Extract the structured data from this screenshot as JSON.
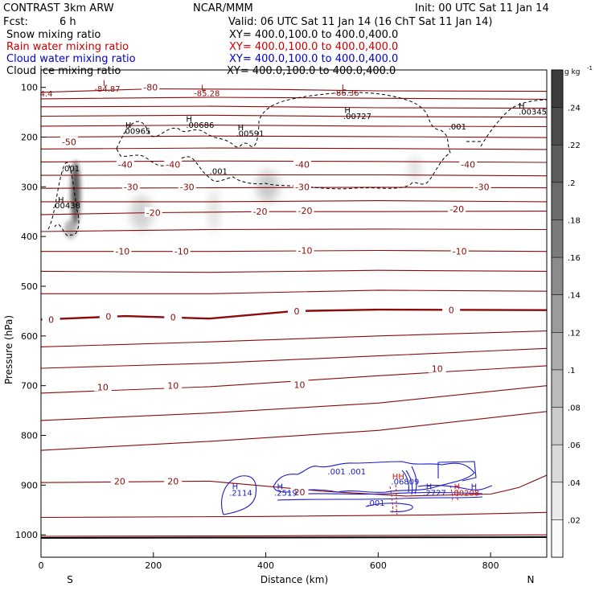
{
  "header": {
    "model": "CONTRAST  3km ARW",
    "center": "NCAR/MMM",
    "init": "Init: 00 UTC Sat 11 Jan 14",
    "fcst_label": "Fcst:",
    "fcst_value": "6 h",
    "valid": "Valid: 06 UTC Sat 11 Jan 14 (16 ChT Sat 11 Jan 14)"
  },
  "legend": [
    {
      "field": "Snow mixing ratio",
      "xy": "XY= 400.0,100.0 to 400.0,400.0",
      "color": "#000000"
    },
    {
      "field": "Rain water mixing ratio",
      "xy": "XY= 400.0,100.0 to 400.0,400.0",
      "color": "#cc0000"
    },
    {
      "field": "Cloud water mixing ratio",
      "xy": "XY= 400.0,100.0 to 400.0,400.0",
      "color": "#0000cc"
    },
    {
      "field": "Cloud ice mixing ratio",
      "xy": "XY= 400.0,100.0 to 400.0,400.0",
      "color": "#000000"
    }
  ],
  "colors": {
    "temperature": "#8b0a0a",
    "cloud_water": "#1a1acc",
    "rain": "#cc1111",
    "ice": "#000000"
  },
  "chart_data": {
    "type": "cross-section",
    "xlabel": "Distance (km)",
    "ylabel": "Pressure (hPa)",
    "xlim": [
      0,
      900
    ],
    "ylim": [
      1045,
      65
    ],
    "x_ticks": [
      "0",
      "200",
      "400",
      "600",
      "800"
    ],
    "y_ticks": [
      "100",
      "200",
      "300",
      "400",
      "500",
      "600",
      "700",
      "800",
      "900",
      "1000"
    ],
    "x_endpoints": [
      "S",
      "N"
    ],
    "colorbar": {
      "unit": "g kg",
      "unit_exp": "-1",
      "ticks": [
        ".24",
        ".22",
        ".2",
        ".18",
        ".16",
        ".14",
        ".12",
        ".1",
        ".08",
        ".06",
        ".04",
        ".02"
      ]
    },
    "temperature_labels": [
      {
        "text": "-80",
        "x": 195,
        "p": 100
      },
      {
        "text": "-50",
        "x": 50,
        "p": 210
      },
      {
        "text": "-40",
        "x": 150,
        "p": 255
      },
      {
        "text": "-40",
        "x": 235,
        "p": 255
      },
      {
        "text": "-40",
        "x": 465,
        "p": 255
      },
      {
        "text": "-40",
        "x": 760,
        "p": 255
      },
      {
        "text": "-30",
        "x": 160,
        "p": 300
      },
      {
        "text": "-30",
        "x": 260,
        "p": 300
      },
      {
        "text": "-30",
        "x": 465,
        "p": 300
      },
      {
        "text": "-30",
        "x": 785,
        "p": 300
      },
      {
        "text": "-20",
        "x": 200,
        "p": 352
      },
      {
        "text": "-20",
        "x": 390,
        "p": 350
      },
      {
        "text": "-20",
        "x": 470,
        "p": 348
      },
      {
        "text": "-20",
        "x": 740,
        "p": 345
      },
      {
        "text": "-10",
        "x": 145,
        "p": 430
      },
      {
        "text": "-10",
        "x": 250,
        "p": 430
      },
      {
        "text": "-10",
        "x": 470,
        "p": 428
      },
      {
        "text": "-10",
        "x": 745,
        "p": 430
      },
      {
        "text": "0",
        "x": 18,
        "p": 567
      },
      {
        "text": "0",
        "x": 120,
        "p": 561
      },
      {
        "text": "0",
        "x": 235,
        "p": 562
      },
      {
        "text": "0",
        "x": 455,
        "p": 550
      },
      {
        "text": "0",
        "x": 730,
        "p": 548
      },
      {
        "text": "10",
        "x": 110,
        "p": 703
      },
      {
        "text": "10",
        "x": 235,
        "p": 700
      },
      {
        "text": "10",
        "x": 460,
        "p": 698
      },
      {
        "text": "10",
        "x": 705,
        "p": 666
      },
      {
        "text": "20",
        "x": 140,
        "p": 892
      },
      {
        "text": "20",
        "x": 235,
        "p": 892
      },
      {
        "text": "20",
        "x": 460,
        "p": 914
      }
    ],
    "extrema_labels": [
      {
        "text": "L",
        "x": 110,
        "p": 90,
        "c": "temp"
      },
      {
        "text": "-84.87",
        "x": 95,
        "p": 102,
        "c": "temp"
      },
      {
        "text": "L",
        "x": 285,
        "p": 100,
        "c": "temp"
      },
      {
        "text": "-85.28",
        "x": 272,
        "p": 111,
        "c": "temp"
      },
      {
        "text": "L",
        "x": 535,
        "p": 99,
        "c": "temp"
      },
      {
        "text": "-86.36",
        "x": 520,
        "p": 110,
        "c": "temp"
      },
      {
        "text": "4.4",
        "x": -2,
        "p": 112,
        "c": "temp"
      },
      {
        "text": "H",
        "x": 150,
        "p": 175,
        "c": "ice"
      },
      {
        "text": ".00965",
        "x": 145,
        "p": 187,
        "c": "ice"
      },
      {
        "text": "H",
        "x": 258,
        "p": 163,
        "c": "ice"
      },
      {
        "text": ".00686",
        "x": 258,
        "p": 175,
        "c": "ice"
      },
      {
        "text": "H",
        "x": 350,
        "p": 180,
        "c": "ice"
      },
      {
        "text": ".00591",
        "x": 347,
        "p": 192,
        "c": "ice"
      },
      {
        "text": "H",
        "x": 540,
        "p": 145,
        "c": "ice"
      },
      {
        "text": ".00727",
        "x": 538,
        "p": 157,
        "c": "ice"
      },
      {
        "text": "H",
        "x": 850,
        "p": 136,
        "c": "ice"
      },
      {
        "text": ".00345",
        "x": 850,
        "p": 148,
        "c": "ice"
      },
      {
        "text": ".001",
        "x": 725,
        "p": 178,
        "c": "ice"
      },
      {
        "text": ".001",
        "x": 37,
        "p": 262,
        "c": "ice"
      },
      {
        "text": ".001",
        "x": 300,
        "p": 268,
        "c": "ice"
      },
      {
        "text": "H",
        "x": 30,
        "p": 325,
        "c": "ice"
      },
      {
        "text": ".00438",
        "x": 20,
        "p": 337,
        "c": "ice"
      },
      {
        "text": ".001 .001",
        "x": 510,
        "p": 872,
        "c": "cw"
      },
      {
        "text": "H",
        "x": 340,
        "p": 902,
        "c": "cw"
      },
      {
        "text": ".2114",
        "x": 335,
        "p": 915,
        "c": "cw"
      },
      {
        "text": "H",
        "x": 420,
        "p": 902,
        "c": "cw"
      },
      {
        "text": ".2519",
        "x": 415,
        "p": 915,
        "c": "cw"
      },
      {
        "text": ".06809",
        "x": 623,
        "p": 892,
        "c": "cw"
      },
      {
        "text": "H",
        "x": 685,
        "p": 902,
        "c": "cw"
      },
      {
        "text": ".2727",
        "x": 680,
        "p": 915,
        "c": "cw"
      },
      {
        "text": "H",
        "x": 765,
        "p": 902,
        "c": "cw"
      },
      {
        "text": ".001",
        "x": 580,
        "p": 935,
        "c": "cw"
      },
      {
        "text": "HH",
        "x": 625,
        "p": 882,
        "c": "rain"
      },
      {
        "text": "H",
        "x": 735,
        "p": 902,
        "c": "rain"
      },
      {
        "text": ".00208",
        "x": 730,
        "p": 915,
        "c": "rain"
      }
    ]
  }
}
